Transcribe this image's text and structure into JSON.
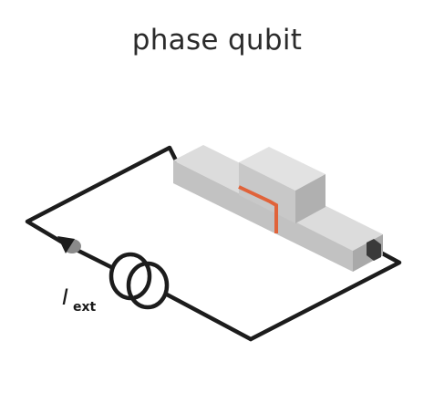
{
  "title": "phase qubit",
  "current_label": {
    "symbol": "I",
    "subscript": "ext"
  },
  "colors": {
    "wire": "#1c1c1c",
    "block_top": "#dcdcdc",
    "block_left": "#bdbdbd",
    "block_right": "#a8a8a8",
    "junction": "#e0633a",
    "arrow": "#8a8a8a"
  }
}
